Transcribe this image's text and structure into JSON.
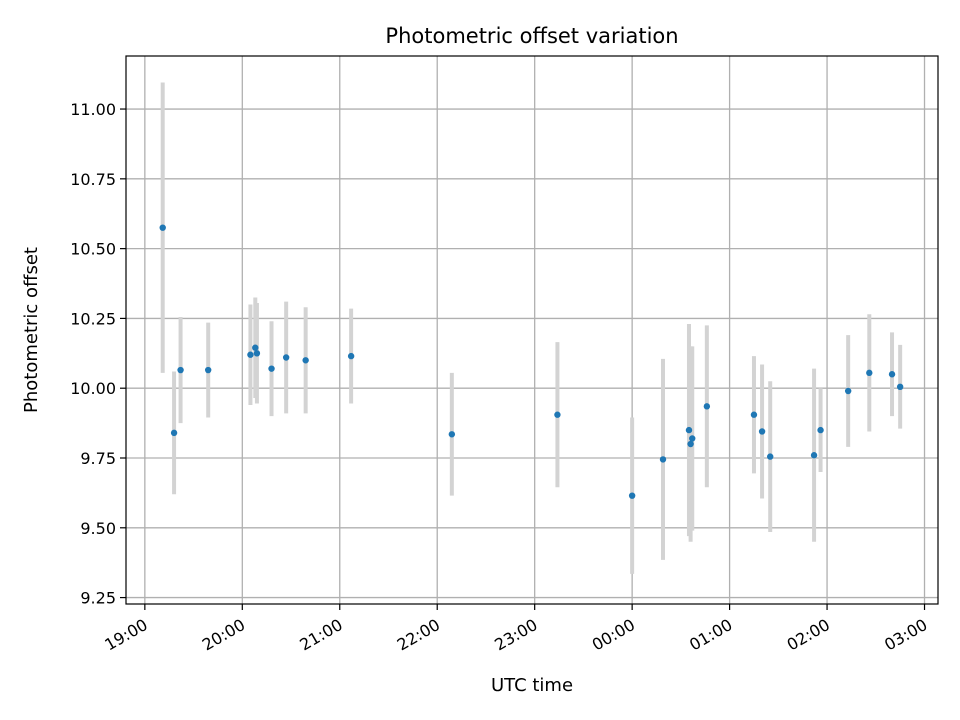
{
  "chart_data": {
    "type": "scatter",
    "title": "Photometric offset variation",
    "xlabel": "UTC time",
    "ylabel": "Photometric offset",
    "xlim": [
      "19:00",
      "03:00"
    ],
    "ylim": [
      9.25,
      11.2
    ],
    "x_ticks": [
      "19:00",
      "20:00",
      "21:00",
      "22:00",
      "23:00",
      "00:00",
      "01:00",
      "02:00",
      "03:00"
    ],
    "y_ticks": [
      "9.25",
      "9.50",
      "9.75",
      "10.00",
      "10.25",
      "10.50",
      "10.75",
      "11.00"
    ],
    "grid": true,
    "colors": {
      "points": "#1f77b4",
      "errorbars": "#d3d3d3",
      "grid": "#b0b0b0"
    },
    "series": [
      {
        "points": [
          {
            "t": "19:11",
            "y": 10.575,
            "err": 0.52
          },
          {
            "t": "19:18",
            "y": 9.84,
            "err": 0.22
          },
          {
            "t": "19:22",
            "y": 10.065,
            "err": 0.19
          },
          {
            "t": "19:39",
            "y": 10.065,
            "err": 0.17
          },
          {
            "t": "20:05",
            "y": 10.12,
            "err": 0.18
          },
          {
            "t": "20:08",
            "y": 10.145,
            "err": 0.18
          },
          {
            "t": "20:09",
            "y": 10.125,
            "err": 0.18
          },
          {
            "t": "20:18",
            "y": 10.07,
            "err": 0.17
          },
          {
            "t": "20:27",
            "y": 10.11,
            "err": 0.2
          },
          {
            "t": "20:39",
            "y": 10.1,
            "err": 0.19
          },
          {
            "t": "21:07",
            "y": 10.115,
            "err": 0.17
          },
          {
            "t": "22:09",
            "y": 9.835,
            "err": 0.22
          },
          {
            "t": "23:14",
            "y": 9.905,
            "err": 0.26
          },
          {
            "t": "00:00",
            "y": 9.615,
            "err": 0.28
          },
          {
            "t": "00:19",
            "y": 9.745,
            "err": 0.36
          },
          {
            "t": "00:35",
            "y": 9.85,
            "err": 0.38
          },
          {
            "t": "00:36",
            "y": 9.8,
            "err": 0.35
          },
          {
            "t": "00:37",
            "y": 9.82,
            "err": 0.33
          },
          {
            "t": "00:46",
            "y": 9.935,
            "err": 0.29
          },
          {
            "t": "01:15",
            "y": 9.905,
            "err": 0.21
          },
          {
            "t": "01:20",
            "y": 9.845,
            "err": 0.24
          },
          {
            "t": "01:25",
            "y": 9.755,
            "err": 0.27
          },
          {
            "t": "01:52",
            "y": 9.76,
            "err": 0.31
          },
          {
            "t": "01:56",
            "y": 9.85,
            "err": 0.15
          },
          {
            "t": "02:13",
            "y": 9.99,
            "err": 0.2
          },
          {
            "t": "02:26",
            "y": 10.055,
            "err": 0.21
          },
          {
            "t": "02:40",
            "y": 10.05,
            "err": 0.15
          },
          {
            "t": "02:45",
            "y": 10.005,
            "err": 0.15
          }
        ]
      }
    ]
  }
}
